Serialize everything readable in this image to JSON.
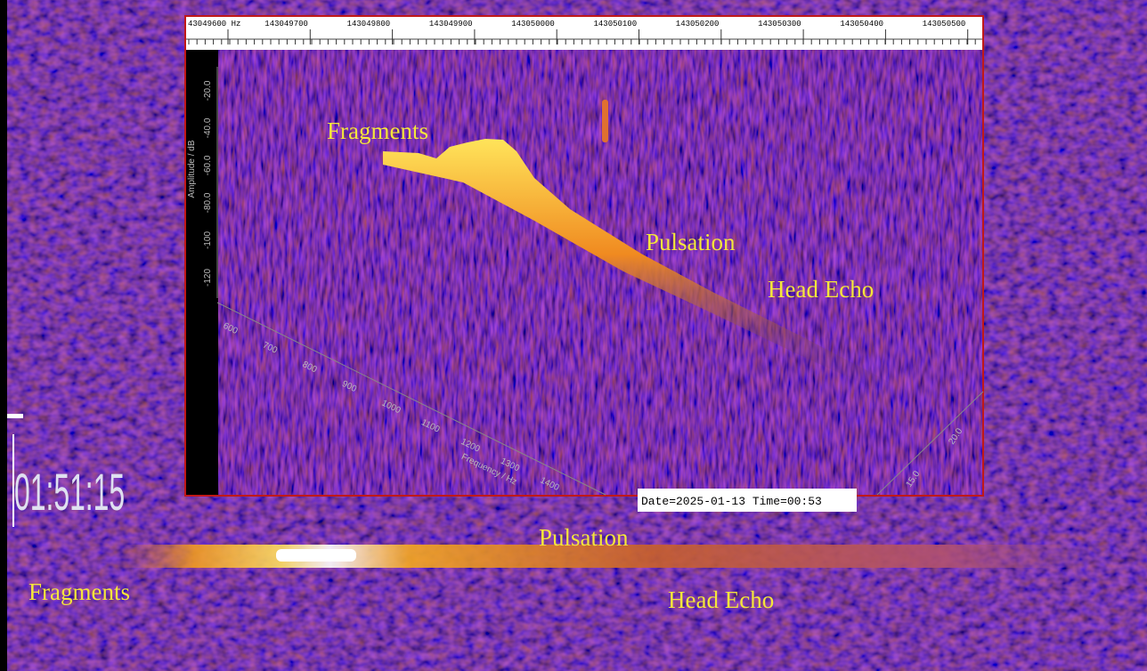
{
  "inset": {
    "frequency_ruler": [
      "43049600 Hz",
      "143049700",
      "143049800",
      "143049900",
      "143050000",
      "143050100",
      "143050200",
      "143050300",
      "143050400",
      "143050500"
    ],
    "amplitude_axis": {
      "title": "Amplitude / dB",
      "ticks": [
        "-20.0",
        "-40.0",
        "-60.0",
        "-80.0",
        "-100",
        "-120"
      ]
    },
    "frequency_axis": {
      "title": "Frequency / Hz",
      "ticks": [
        "600",
        "700",
        "800",
        "900",
        "1000",
        "1100",
        "1200",
        "1300",
        "1400"
      ]
    },
    "time_axis": {
      "ticks": [
        "15.0",
        "20.0"
      ]
    },
    "annotations": [
      "Fragments",
      "Pulsation",
      "Head Echo"
    ],
    "stamp": "Date=2025-01-13 Time=00:53"
  },
  "waterfall": {
    "clock": "01:51:15",
    "annotations": [
      "Pulsation",
      "Fragments",
      "Head Echo"
    ]
  }
}
